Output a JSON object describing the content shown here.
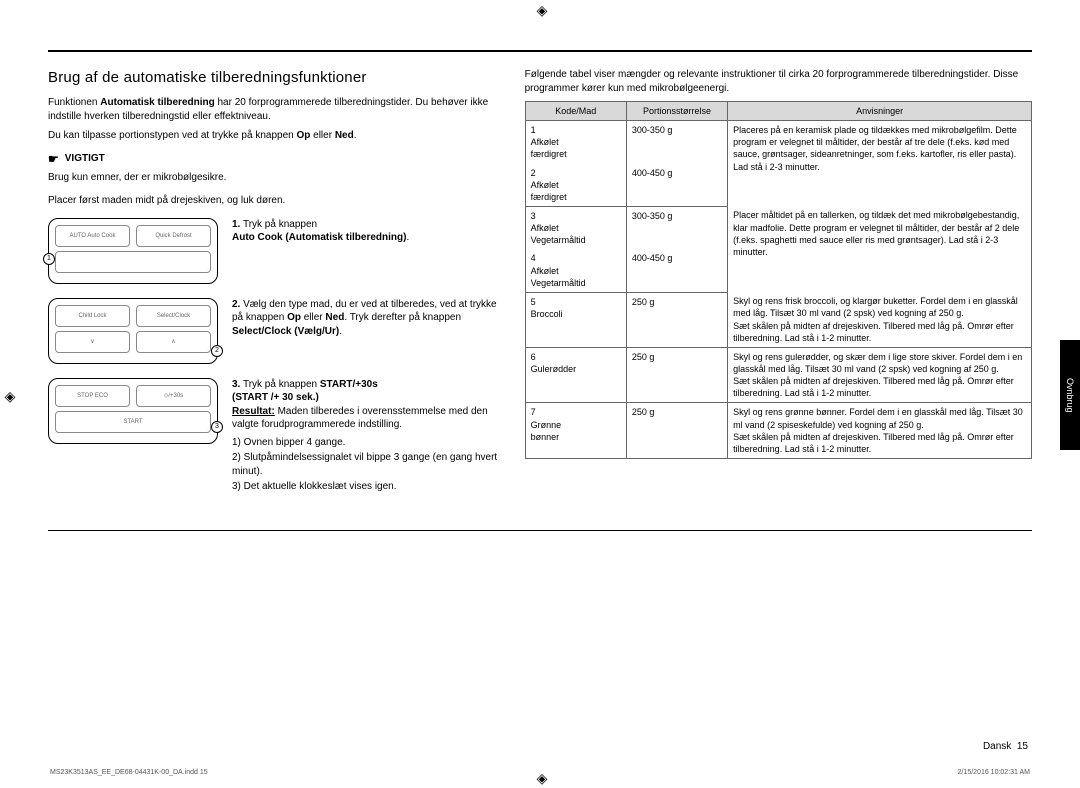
{
  "side_tab": "Ovnbrug",
  "heading": "Brug af de automatiske tilberedningsfunktioner",
  "intro": {
    "line1_prefix": "Funktionen ",
    "line1_bold": "Automatisk tilberedning",
    "line1_suffix": " har 20 forprogrammerede tilberedningstider. Du behøver ikke indstille hverken tilberedningstid eller effektniveau.",
    "line2_prefix": "Du kan tilpasse portionstypen ved at trykke på knappen ",
    "line2_bold1": "Op",
    "line2_mid": " eller ",
    "line2_bold2": "Ned",
    "line2_suffix": "."
  },
  "vigtigt_label": "VIGTIGT",
  "vigtigt_text": "Brug kun emner, der er mikrobølgesikre.",
  "placer_text": "Placer først maden midt på drejeskiven, og luk døren.",
  "panel1": {
    "btn1": "AUTO\nAuto Cook",
    "btn2": "Quick Defrost"
  },
  "panel2": {
    "btn1": "Child Lock",
    "btn2": "Select/Clock"
  },
  "panel3": {
    "btn1": "STOP  ECO",
    "btn2": "START",
    "btn3": "/+30s"
  },
  "step1": {
    "num": "1.",
    "text": "Tryk på knappen",
    "bold": "Auto Cook (Automatisk tilberedning)",
    "suffix": "."
  },
  "step2": {
    "num": "2.",
    "text_a": "Vælg den type mad, du er ved at tilberedes, ved at trykke på knappen ",
    "bold1": "Op",
    "mid": " eller ",
    "bold2": "Ned",
    "text_b": ". Tryk derefter på knappen ",
    "bold3": "Select/Clock (Vælg/Ur)",
    "suffix": "."
  },
  "step3": {
    "num": "3.",
    "text_a": "Tryk på knappen ",
    "bold1": "START/+30s",
    "bold2": "START /+ 30 sek.",
    "suffix": ")",
    "result_label": "Resultat:",
    "result_text": " Maden tilberedes i overensstemmelse med den valgte forudprogrammerede indstilling.",
    "li1": "1) Ovnen bipper 4 gange.",
    "li2": "2) Slutpåmindelsessignalet vil bippe 3 gange (en gang hvert minut).",
    "li3": "3) Det aktuelle klokkeslæt vises igen."
  },
  "right_intro": "Følgende tabel viser mængder og relevante instruktioner til cirka 20 forprogrammerede tilberedningstider. Disse programmer kører kun med mikrobølgeenergi.",
  "table": {
    "headers": [
      "Kode/Mad",
      "Portionsstørrelse",
      "Anvisninger"
    ],
    "rows": [
      {
        "code": "1",
        "food": "Afkølet færdigret",
        "portion": "300-350 g",
        "instr": "Placeres på en keramisk plade og tildækkes med mikrobølgefilm. Dette program er velegnet til måltider, der består af tre dele (f.eks. kød med sauce, grøntsager, sideanretninger, som f.eks. kartofler, ris eller pasta). Lad stå i 2-3 minutter.",
        "merge_down": true
      },
      {
        "code": "2",
        "food": "Afkølet færdigret",
        "portion": "400-450 g",
        "instr": ""
      },
      {
        "code": "3",
        "food": "Afkølet Vegetarmåltid",
        "portion": "300-350 g",
        "instr": "Placer måltidet på en tallerken, og tildæk det med mikrobølgebestandig, klar madfolie. Dette program er velegnet til måltider, der består af 2 dele (f.eks. spaghetti med sauce eller ris med grøntsager). Lad stå i 2-3 minutter.",
        "merge_down": true
      },
      {
        "code": "4",
        "food": "Afkølet Vegetarmåltid",
        "portion": "400-450 g",
        "instr": ""
      },
      {
        "code": "5",
        "food": "Broccoli",
        "portion": "250 g",
        "instr": "Skyl og rens frisk broccoli, og klargør buketter. Fordel dem i en glasskål med låg. Tilsæt 30 ml vand (2 spsk) ved kogning af 250 g.\nSæt skålen på midten af drejeskiven. Tilbered med låg på. Omrør efter tilberedning. Lad stå i 1-2 minutter."
      },
      {
        "code": "6",
        "food": "Gulerødder",
        "portion": "250 g",
        "instr": "Skyl og rens gulerødder, og skær dem i lige store skiver. Fordel dem i en glasskål med låg. Tilsæt 30 ml vand (2 spsk) ved kogning af 250 g.\nSæt skålen på midten af drejeskiven. Tilbered med låg på. Omrør efter tilberedning. Lad stå i 1-2 minutter."
      },
      {
        "code": "7",
        "food": "Grønne bønner",
        "portion": "250 g",
        "instr": "Skyl og rens grønne bønner. Fordel dem i en glasskål med låg. Tilsæt 30 ml vand (2 spiseskefulde) ved kogning af 250 g.\nSæt skålen på midten af drejeskiven. Tilbered med låg på. Omrør efter tilberedning. Lad stå i 1-2 minutter."
      }
    ]
  },
  "footer_lang": "Dansk",
  "footer_page": "15",
  "footer_filename": "MS23K3513AS_EE_DE68-04431K-00_DA.indd   15",
  "footer_date": "2/15/2016   10:02:31 AM"
}
